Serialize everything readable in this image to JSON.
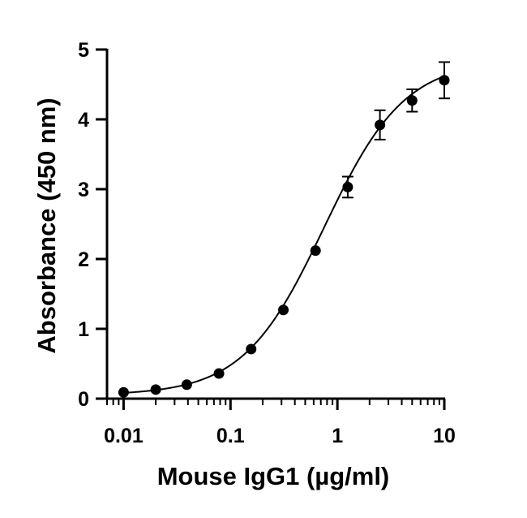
{
  "chart_data": {
    "type": "scatter",
    "title": "",
    "xlabel": "Mouse IgG1 (µg/ml)",
    "ylabel": "Absorbance (450 nm)",
    "xscale": "log",
    "xlim": [
      0.007,
      10
    ],
    "ylim": [
      0,
      5
    ],
    "xticks": [
      0.01,
      0.1,
      1,
      10
    ],
    "xtick_labels": [
      "0.01",
      "0.1",
      "1",
      "10"
    ],
    "yticks": [
      0,
      1,
      2,
      3,
      4,
      5
    ],
    "ytick_labels": [
      "0",
      "1",
      "2",
      "3",
      "4",
      "5"
    ],
    "grid": false,
    "legend": "none",
    "fit_curve": "sigmoidal (4PL)",
    "marker_color": "#000000",
    "series": [
      {
        "x": [
          0.01,
          0.02,
          0.039,
          0.078,
          0.156,
          0.3125,
          0.625,
          1.25,
          2.5,
          5,
          10
        ],
        "y": [
          0.09,
          0.13,
          0.2,
          0.36,
          0.71,
          1.27,
          2.12,
          3.03,
          3.92,
          4.27,
          4.56
        ],
        "error": [
          0.02,
          0.02,
          0.02,
          0.03,
          0.04,
          0.04,
          0.05,
          0.15,
          0.21,
          0.16,
          0.26
        ]
      }
    ]
  }
}
